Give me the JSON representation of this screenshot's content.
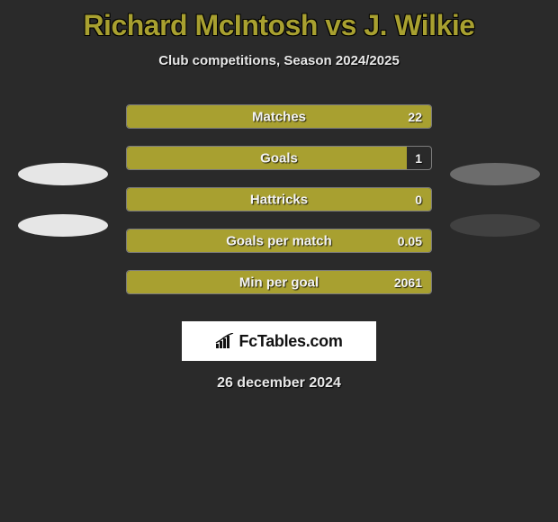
{
  "title": "Richard McIntosh vs J. Wilkie",
  "subtitle": "Club competitions, Season 2024/2025",
  "date": "26 december 2024",
  "background_color": "#2a2a2a",
  "bar_fill_color": "#a8a030",
  "bar_border_color": "#7c7c7c",
  "title_color": "#a8a030",
  "text_color": "#e8e8e8",
  "left_ovals": [
    {
      "bg": "#e6e6e6"
    },
    {
      "bg": "#e6e6e6"
    }
  ],
  "right_ovals": [
    {
      "bg": "#6c6c6c"
    },
    {
      "bg": "#414141"
    }
  ],
  "rows": [
    {
      "label": "Matches",
      "value": "22",
      "fill_pct": 100
    },
    {
      "label": "Goals",
      "value": "1",
      "fill_pct": 92
    },
    {
      "label": "Hattricks",
      "value": "0",
      "fill_pct": 100
    },
    {
      "label": "Goals per match",
      "value": "0.05",
      "fill_pct": 100
    },
    {
      "label": "Min per goal",
      "value": "2061",
      "fill_pct": 100
    }
  ],
  "logo_text": "FcTables.com"
}
